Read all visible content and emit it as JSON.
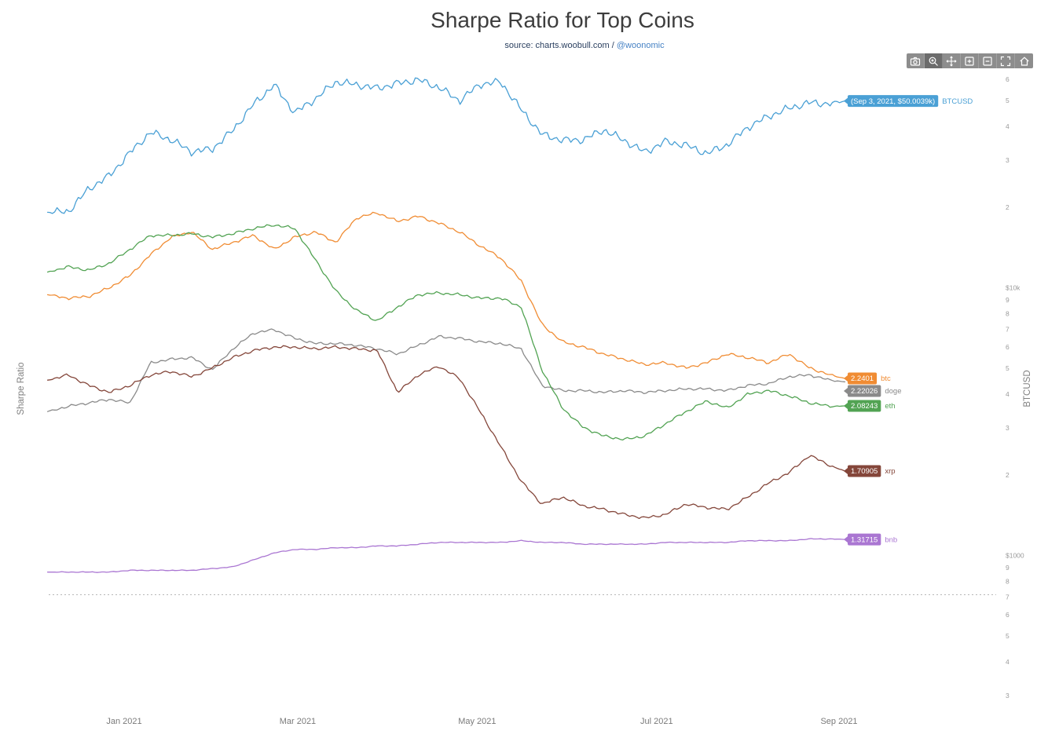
{
  "title": "Sharpe Ratio for Top Coins",
  "subtitle": {
    "prefix": "source: charts.woobull.com / ",
    "link": "@woonomic"
  },
  "toolbar": {
    "buttons": [
      "camera",
      "zoom",
      "pan",
      "zoom-in",
      "zoom-out",
      "autoscale",
      "home"
    ],
    "active": "zoom"
  },
  "axes": {
    "left_title": "Sharpe Ratio",
    "right_title": "BTCUSD",
    "x_ticks": [
      {
        "label": "Jan 2021",
        "date": "2021-01-01"
      },
      {
        "label": "Mar 2021",
        "date": "2021-03-01"
      },
      {
        "label": "May 2021",
        "date": "2021-05-01"
      },
      {
        "label": "Jul 2021",
        "date": "2021-07-01"
      },
      {
        "label": "Sep 2021",
        "date": "2021-09-01"
      }
    ],
    "right_ticks": [
      {
        "label": "6",
        "value": 60000
      },
      {
        "label": "5",
        "value": 50000
      },
      {
        "label": "4",
        "value": 40000
      },
      {
        "label": "3",
        "value": 30000
      },
      {
        "label": "2",
        "value": 20000
      },
      {
        "label": "$10k",
        "value": 10000
      },
      {
        "label": "9",
        "value": 9000
      },
      {
        "label": "8",
        "value": 8000
      },
      {
        "label": "7",
        "value": 7000
      },
      {
        "label": "6",
        "value": 6000
      },
      {
        "label": "5",
        "value": 5000
      },
      {
        "label": "4",
        "value": 4000
      },
      {
        "label": "3",
        "value": 3000
      },
      {
        "label": "2",
        "value": 2000
      },
      {
        "label": "$1000",
        "value": 1000
      },
      {
        "label": "9",
        "value": 900
      },
      {
        "label": "8",
        "value": 800
      },
      {
        "label": "7",
        "value": 700
      },
      {
        "label": "6",
        "value": 600
      },
      {
        "label": "5",
        "value": 500
      },
      {
        "label": "4",
        "value": 400
      },
      {
        "label": "3",
        "value": 300
      }
    ]
  },
  "reference_line": {
    "value": 1.0,
    "axis": "left",
    "style": "dotted"
  },
  "chart_data": {
    "type": "line",
    "title": "Sharpe Ratio for Top Coins",
    "left_axis": {
      "title": "Sharpe Ratio",
      "range_est": [
        0.95,
        3.35
      ],
      "ticks_visible": false
    },
    "right_axis": {
      "title": "BTCUSD",
      "scale": "log",
      "range": [
        300,
        65000
      ]
    },
    "grid": false,
    "legend": "end-of-line-labels",
    "x": [
      "2020-12-06",
      "2020-12-13",
      "2020-12-20",
      "2020-12-27",
      "2021-01-03",
      "2021-01-10",
      "2021-01-17",
      "2021-01-24",
      "2021-01-31",
      "2021-02-07",
      "2021-02-14",
      "2021-02-21",
      "2021-02-28",
      "2021-03-07",
      "2021-03-14",
      "2021-03-21",
      "2021-03-28",
      "2021-04-04",
      "2021-04-11",
      "2021-04-18",
      "2021-04-25",
      "2021-05-02",
      "2021-05-09",
      "2021-05-16",
      "2021-05-23",
      "2021-05-30",
      "2021-06-06",
      "2021-06-13",
      "2021-06-20",
      "2021-06-27",
      "2021-07-04",
      "2021-07-11",
      "2021-07-18",
      "2021-07-25",
      "2021-08-01",
      "2021-08-08",
      "2021-08-15",
      "2021-08-22",
      "2021-08-29",
      "2021-09-03"
    ],
    "series": [
      {
        "name": "BTCUSD",
        "axis": "right",
        "color": "#4aa0d5",
        "end_label": "(Sep 3, 2021, $50.0039k)",
        "label_text": "BTCUSD",
        "values": [
          19200,
          19300,
          23500,
          26300,
          32100,
          38200,
          35800,
          32300,
          33100,
          38900,
          48600,
          57400,
          45200,
          50900,
          59000,
          57500,
          55800,
          58200,
          60000,
          56200,
          50100,
          57800,
          58900,
          46400,
          37500,
          35700,
          35800,
          39000,
          35600,
          32200,
          35300,
          34200,
          31800,
          34300,
          39900,
          43800,
          47000,
          49300,
          48800,
          50003.9
        ]
      },
      {
        "name": "btc",
        "axis": "left",
        "color": "#f08c33",
        "end_label": "2.2401",
        "label_text": "btc",
        "values": [
          2.72,
          2.7,
          2.71,
          2.76,
          2.83,
          2.95,
          3.05,
          3.08,
          2.98,
          3.02,
          3.06,
          2.98,
          3.05,
          3.08,
          3.02,
          3.16,
          3.19,
          3.14,
          3.17,
          3.13,
          3.08,
          3.0,
          2.93,
          2.8,
          2.55,
          2.45,
          2.42,
          2.38,
          2.35,
          2.32,
          2.33,
          2.3,
          2.33,
          2.38,
          2.36,
          2.33,
          2.38,
          2.3,
          2.26,
          2.2401
        ]
      },
      {
        "name": "doge",
        "axis": "left",
        "color": "#8a8a8a",
        "end_label": "2.22026",
        "label_text": "doge",
        "values": [
          2.05,
          2.08,
          2.1,
          2.12,
          2.1,
          2.33,
          2.35,
          2.36,
          2.29,
          2.41,
          2.5,
          2.52,
          2.47,
          2.44,
          2.44,
          2.43,
          2.41,
          2.38,
          2.43,
          2.48,
          2.47,
          2.45,
          2.44,
          2.41,
          2.2,
          2.17,
          2.17,
          2.16,
          2.17,
          2.16,
          2.17,
          2.18,
          2.18,
          2.17,
          2.2,
          2.21,
          2.25,
          2.26,
          2.23,
          2.22026
        ]
      },
      {
        "name": "eth",
        "axis": "left",
        "color": "#52a353",
        "end_label": "2.08243",
        "label_text": "eth",
        "values": [
          2.85,
          2.88,
          2.86,
          2.9,
          2.98,
          3.06,
          3.06,
          3.07,
          3.05,
          3.07,
          3.1,
          3.12,
          3.1,
          2.92,
          2.74,
          2.63,
          2.57,
          2.65,
          2.72,
          2.73,
          2.72,
          2.7,
          2.7,
          2.65,
          2.29,
          2.07,
          1.96,
          1.91,
          1.89,
          1.91,
          1.98,
          2.05,
          2.11,
          2.07,
          2.15,
          2.17,
          2.14,
          2.1,
          2.08,
          2.08243
        ]
      },
      {
        "name": "xrp",
        "axis": "left",
        "color": "#84463a",
        "end_label": "1.70905",
        "label_text": "xrp",
        "values": [
          2.23,
          2.26,
          2.2,
          2.16,
          2.2,
          2.26,
          2.28,
          2.25,
          2.3,
          2.36,
          2.4,
          2.42,
          2.42,
          2.41,
          2.42,
          2.41,
          2.4,
          2.16,
          2.26,
          2.31,
          2.24,
          2.05,
          1.85,
          1.65,
          1.52,
          1.56,
          1.51,
          1.49,
          1.46,
          1.44,
          1.46,
          1.52,
          1.5,
          1.49,
          1.56,
          1.64,
          1.7,
          1.8,
          1.74,
          1.70905
        ]
      },
      {
        "name": "bnb",
        "axis": "left",
        "color": "#aa76d2",
        "end_label": "1.31715",
        "label_text": "bnb",
        "values": [
          1.13,
          1.13,
          1.13,
          1.13,
          1.14,
          1.14,
          1.14,
          1.14,
          1.15,
          1.16,
          1.2,
          1.24,
          1.26,
          1.26,
          1.27,
          1.27,
          1.28,
          1.28,
          1.29,
          1.3,
          1.3,
          1.3,
          1.3,
          1.31,
          1.3,
          1.3,
          1.29,
          1.29,
          1.29,
          1.29,
          1.3,
          1.3,
          1.3,
          1.3,
          1.31,
          1.31,
          1.31,
          1.32,
          1.32,
          1.31715
        ]
      }
    ]
  }
}
